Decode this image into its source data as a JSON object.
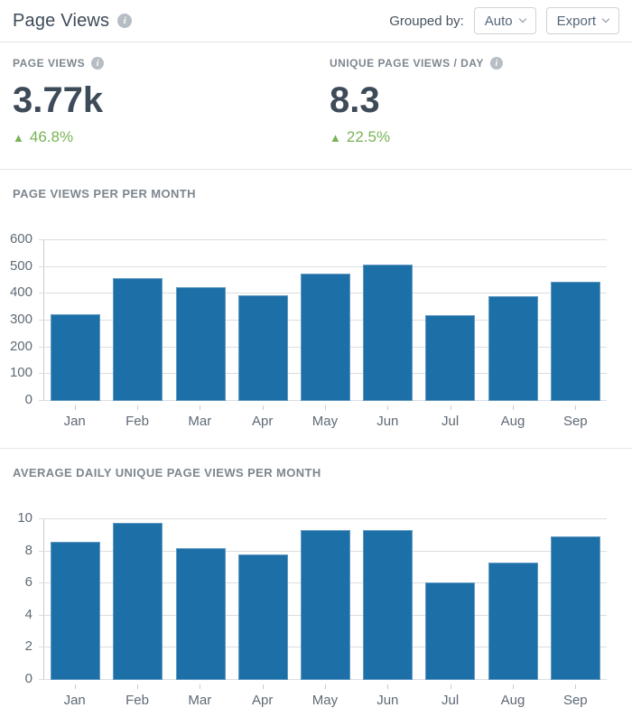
{
  "header": {
    "title": "Page Views",
    "grouped_by_label": "Grouped by:",
    "grouped_by_value": "Auto",
    "export_label": "Export"
  },
  "kpis": [
    {
      "label": "PAGE VIEWS",
      "value": "3.77k",
      "arrow": "▲",
      "delta": "46.8%"
    },
    {
      "label": "UNIQUE PAGE VIEWS / DAY",
      "value": "8.3",
      "arrow": "▲",
      "delta": "22.5%"
    }
  ],
  "colors": {
    "bar_blue": "#1d6fa8",
    "bar_edge": "rgba(255,255,255,0.3)",
    "positive_green": "#7ab257",
    "heading_text": "#3d4a58",
    "muted_label": "#7d868e",
    "axis_text": "#5f6a75",
    "gridline": "#dbdee1",
    "divider": "#e4e6e9"
  },
  "chart_data": [
    {
      "type": "bar",
      "title": "PAGE VIEWS PER PER MONTH",
      "categories": [
        "Jan",
        "Feb",
        "Mar",
        "Apr",
        "May",
        "Jun",
        "Jul",
        "Aug",
        "Sep"
      ],
      "values": [
        325,
        460,
        425,
        395,
        475,
        510,
        320,
        390,
        445
      ],
      "xlabel": "",
      "ylabel": "",
      "ylim": [
        0,
        600
      ],
      "yticks": [
        0,
        100,
        200,
        300,
        400,
        500,
        600
      ],
      "grid": true,
      "legend": false,
      "bar_color": "#1d6fa8"
    },
    {
      "type": "bar",
      "title": "AVERAGE DAILY UNIQUE PAGE VIEWS PER MONTH",
      "categories": [
        "Jan",
        "Feb",
        "Mar",
        "Apr",
        "May",
        "Jun",
        "Jul",
        "Aug",
        "Sep"
      ],
      "values": [
        8.6,
        9.75,
        8.2,
        7.8,
        9.35,
        9.3,
        6.05,
        7.3,
        8.95
      ],
      "xlabel": "",
      "ylabel": "",
      "ylim": [
        0,
        10
      ],
      "yticks": [
        0,
        2,
        4,
        6,
        8,
        10
      ],
      "grid": true,
      "legend": false,
      "bar_color": "#1d6fa8"
    }
  ]
}
